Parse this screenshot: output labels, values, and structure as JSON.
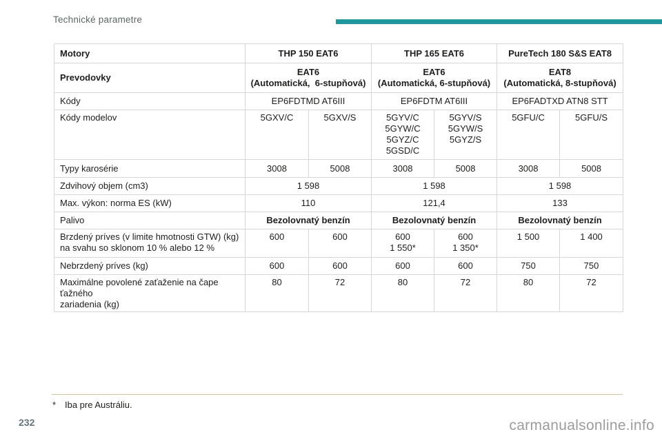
{
  "page": {
    "header_title": "Technické parametre",
    "page_number": "232",
    "footnote_marker": "*",
    "footnote_text": "Iba pre Austráliu.",
    "watermark": "carmanualsonline.info"
  },
  "colors": {
    "accent_bar": "#1f979d",
    "table_border": "#d6d6d6",
    "footnote_line": "#cfc3a4",
    "header_title_text": "#5c6664",
    "page_number_text": "#64767a",
    "watermark_text": "#9c9c9c"
  },
  "table": {
    "rows": [
      {
        "id": "motory",
        "bold": true,
        "cells": [
          {
            "text": "Motory",
            "span": 1
          },
          {
            "text": "THP 150 EAT6",
            "span": 2
          },
          {
            "text": "THP 165 EAT6",
            "span": 2
          },
          {
            "text": "PureTech 180 S&S EAT8",
            "span": 2
          }
        ]
      },
      {
        "id": "prevodovky",
        "bold": true,
        "cells": [
          {
            "text": "Prevodovky",
            "span": 1
          },
          {
            "text": "EAT6\n(Automatická,  6-stupňová)",
            "span": 2
          },
          {
            "text": "EAT6\n(Automatická, 6-stupňová)",
            "span": 2
          },
          {
            "text": "EAT8\n(Automatická, 8-stupňová)",
            "span": 2
          }
        ]
      },
      {
        "id": "kody",
        "bold": false,
        "cells": [
          {
            "text": "Kódy",
            "span": 1
          },
          {
            "text": "EP6FDTMD AT6III",
            "span": 2
          },
          {
            "text": "EP6FDTM AT6III",
            "span": 2
          },
          {
            "text": "EP6FADTXD ATN8 STT",
            "span": 2
          }
        ]
      },
      {
        "id": "kody-modelov",
        "bold": false,
        "cells": [
          {
            "text": "Kódy modelov",
            "span": 1
          },
          {
            "text": "5GXV/C",
            "span": 1
          },
          {
            "text": "5GXV/S",
            "span": 1
          },
          {
            "text": "5GYV/C\n5GYW/C\n5GYZ/C\n5GSD/C",
            "span": 1
          },
          {
            "text": "5GYV/S\n5GYW/S\n5GYZ/S",
            "span": 1
          },
          {
            "text": "5GFU/C",
            "span": 1
          },
          {
            "text": "5GFU/S",
            "span": 1
          }
        ]
      },
      {
        "id": "typy-karoserie",
        "bold": false,
        "cells": [
          {
            "text": "Typy karosérie",
            "span": 1
          },
          {
            "text": "3008",
            "span": 1
          },
          {
            "text": "5008",
            "span": 1
          },
          {
            "text": "3008",
            "span": 1
          },
          {
            "text": "5008",
            "span": 1
          },
          {
            "text": "3008",
            "span": 1
          },
          {
            "text": "5008",
            "span": 1
          }
        ]
      },
      {
        "id": "zdvihovy-objem",
        "bold": false,
        "cells": [
          {
            "text": "Zdvihový objem (cm3)",
            "span": 1
          },
          {
            "text": "1 598",
            "span": 2
          },
          {
            "text": "1 598",
            "span": 2
          },
          {
            "text": "1 598",
            "span": 2
          }
        ]
      },
      {
        "id": "max-vykon",
        "bold": false,
        "cells": [
          {
            "text": "Max. výkon: norma ES (kW)",
            "span": 1
          },
          {
            "text": "110",
            "span": 2
          },
          {
            "text": "121,4",
            "span": 2
          },
          {
            "text": "133",
            "span": 2
          }
        ]
      },
      {
        "id": "palivo",
        "bold": false,
        "cells": [
          {
            "text": "Palivo",
            "span": 1
          },
          {
            "text": "Bezolovnatý benzín",
            "span": 2,
            "bold": true
          },
          {
            "text": "Bezolovnatý benzín",
            "span": 2,
            "bold": true
          },
          {
            "text": "Bezolovnatý benzín",
            "span": 2,
            "bold": true
          }
        ]
      },
      {
        "id": "brzdeny-prives",
        "bold": false,
        "cells": [
          {
            "text": "Brzdený príves (v limite hmotnosti GTW) (kg)\nna svahu so sklonom 10 % alebo 12 %",
            "span": 1
          },
          {
            "text": "600",
            "span": 1
          },
          {
            "text": "600",
            "span": 1
          },
          {
            "text": "600\n1 550*",
            "span": 1
          },
          {
            "text": "600\n1 350*",
            "span": 1
          },
          {
            "text": "1 500",
            "span": 1
          },
          {
            "text": "1 400",
            "span": 1
          }
        ]
      },
      {
        "id": "nebrzdeny-prives",
        "bold": false,
        "cells": [
          {
            "text": "Nebrzdený príves (kg)",
            "span": 1
          },
          {
            "text": "600",
            "span": 1
          },
          {
            "text": "600",
            "span": 1
          },
          {
            "text": "600",
            "span": 1
          },
          {
            "text": "600",
            "span": 1
          },
          {
            "text": "750",
            "span": 1
          },
          {
            "text": "750",
            "span": 1
          }
        ]
      },
      {
        "id": "max-zatazenie",
        "bold": false,
        "cells": [
          {
            "text": "Maximálne povolené zaťaženie na čape ťažného\nzariadenia (kg)",
            "span": 1
          },
          {
            "text": "80",
            "span": 1
          },
          {
            "text": "72",
            "span": 1
          },
          {
            "text": "80",
            "span": 1
          },
          {
            "text": "72",
            "span": 1
          },
          {
            "text": "80",
            "span": 1
          },
          {
            "text": "72",
            "span": 1
          }
        ]
      }
    ]
  }
}
